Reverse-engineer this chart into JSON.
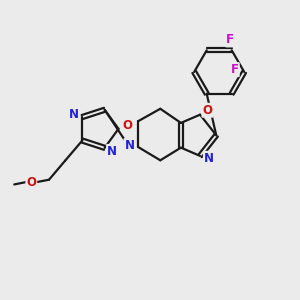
{
  "background_color": "#ebebeb",
  "bond_color": "#1a1a1a",
  "bond_width": 1.6,
  "atom_colors": {
    "N": "#2222dd",
    "O": "#cc1111",
    "F": "#cc11cc"
  },
  "font_size": 8.5
}
